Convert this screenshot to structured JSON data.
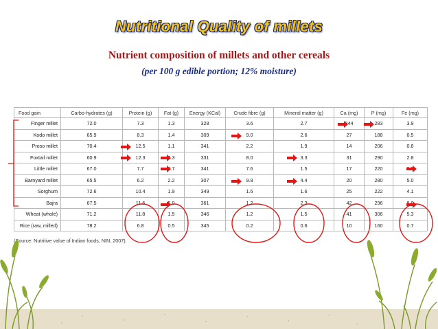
{
  "slide": {
    "title": "Nutritional Quality of millets",
    "subtitle": "Nutrient composition of millets and other cereals",
    "note": "(per 100 g edible portion; 12% moisture)",
    "source": "(Source: Nutritive value of Indian foods, NIN, 2007)."
  },
  "table": {
    "headers": [
      "Food gain",
      "Carbo-hydrates (g)",
      "Protein (g)",
      "Fat (g)",
      "Energy (KCal)",
      "Crude fibre (g)",
      "Mineral matter (g)",
      "Ca (mg)",
      "P (mg)",
      "Fe (mg)"
    ],
    "rows": [
      [
        "Finger millet",
        "72.0",
        "7.3",
        "1.3",
        "328",
        "3.6",
        "2.7",
        "344",
        "283",
        "3.9"
      ],
      [
        "Kodo millet",
        "65.9",
        "8.3",
        "1.4",
        "309",
        "9.0",
        "2.6",
        "27",
        "188",
        "0.5"
      ],
      [
        "Proso millet",
        "70.4",
        "12.5",
        "1.1",
        "341",
        "2.2",
        "1.9",
        "14",
        "206",
        "0.8"
      ],
      [
        "Foxtail millet",
        "60.9",
        "12.3",
        "4.3",
        "331",
        "8.0",
        "3.3",
        "31",
        "290",
        "2.8"
      ],
      [
        "Little millet",
        "67.0",
        "7.7",
        "4.7",
        "341",
        "7.6",
        "1.5",
        "17",
        "220",
        "9.3"
      ],
      [
        "Barnyard millet",
        "65.5",
        "6.2",
        "2.2",
        "307",
        "9.8",
        "4.4",
        "20",
        "280",
        "5.0"
      ],
      [
        "Sorghum",
        "72.6",
        "10.4",
        "1.9",
        "349",
        "1.6",
        "1.6",
        "25",
        "222",
        "4.1"
      ],
      [
        "Bajra",
        "67.5",
        "11.6",
        "5.0",
        "361",
        "1.2",
        "2.3",
        "42",
        "296",
        "8.0"
      ],
      [
        "Wheat (whole)",
        "71.2",
        "11.8",
        "1.5",
        "346",
        "1.2",
        "1.5",
        "41",
        "306",
        "5.3"
      ],
      [
        "Rice (raw, milled)",
        "78.2",
        "6.8",
        "0.5",
        "345",
        "0.2",
        "0.6",
        "10",
        "160",
        "0.7"
      ]
    ]
  },
  "colors": {
    "title_fill": "#f2c020",
    "title_outline": "#1a2a6a",
    "subtitle": "#9c1a1a",
    "note": "#1b2d8a",
    "arrow": "#e01818",
    "circle": "#e01818",
    "plant": "#7a9a2a",
    "ground": "#e7dfca"
  },
  "icons": [
    "right-arrow-icon",
    "millet-plant-icon"
  ]
}
